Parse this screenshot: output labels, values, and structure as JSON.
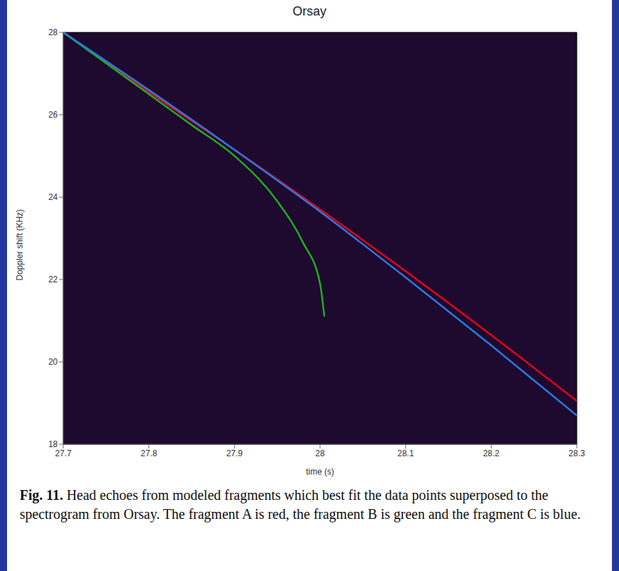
{
  "chart_data": {
    "type": "line",
    "title": "Orsay",
    "x_label": "time (s)",
    "y_label": "Doppler shift (KHz)",
    "xlim": [
      27.7,
      28.3
    ],
    "xticks": [
      27.7,
      27.8,
      27.9,
      28,
      28.1,
      28.2,
      28.3
    ],
    "ylim": [
      18,
      28
    ],
    "yticks": [
      18,
      20,
      22,
      24,
      26,
      28
    ],
    "grid": false,
    "caption": "Fig. 11. Head echoes from modeled fragments which best fit the data points superposed to the spectrogram from Orsay. The fragment A is red, the fragment B is green and the fragment C is blue.",
    "series": [
      {
        "name": "A",
        "color": "#e8001c",
        "x": [
          27.7,
          27.8,
          27.9,
          28.0,
          28.1,
          28.2,
          28.3
        ],
        "values": [
          28.0,
          26.55,
          25.15,
          23.7,
          22.2,
          20.65,
          19.05
        ]
      },
      {
        "name": "B",
        "color": "#1fae1f",
        "x": [
          27.7,
          27.8,
          27.85,
          27.9,
          27.95,
          27.98,
          28.0,
          28.005
        ],
        "values": [
          28.0,
          26.5,
          25.75,
          25.0,
          23.9,
          22.9,
          21.9,
          21.1
        ]
      },
      {
        "name": "C",
        "color": "#2a7ae0",
        "x": [
          27.7,
          27.8,
          27.9,
          28.0,
          28.1,
          28.2,
          28.3
        ],
        "values": [
          28.0,
          26.6,
          25.15,
          23.65,
          22.05,
          20.4,
          18.7
        ]
      }
    ]
  }
}
